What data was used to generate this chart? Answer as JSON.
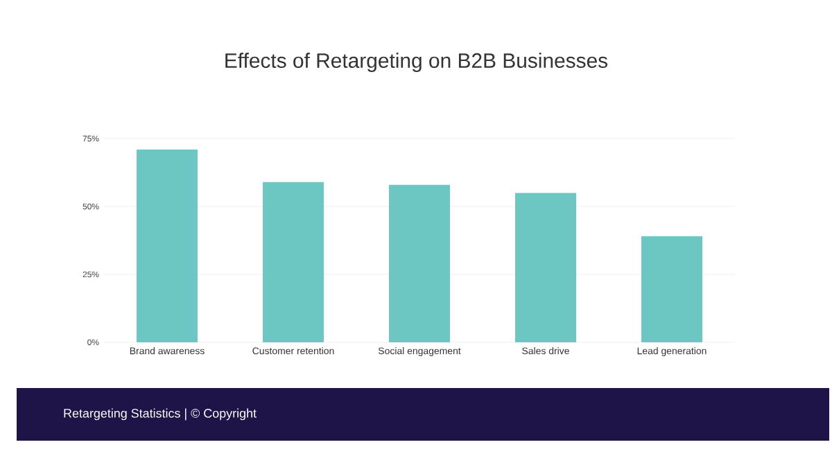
{
  "chart_data": {
    "type": "bar",
    "title": "Effects of Retargeting on B2B Businesses",
    "categories": [
      "Brand awareness",
      "Customer retention",
      "Social engagement",
      "Sales drive",
      "Lead generation"
    ],
    "values": [
      71,
      59,
      58,
      55,
      39
    ],
    "color": "#6cc7c3",
    "ylim": [
      0,
      75
    ],
    "yticks": [
      {
        "value": 0,
        "label": "0%"
      },
      {
        "value": 25,
        "label": "25%"
      },
      {
        "value": 50,
        "label": "50%"
      },
      {
        "value": 75,
        "label": "75%"
      }
    ],
    "grid": "y",
    "annotations": [
      "Retargeting Statistics | © Copyright"
    ]
  }
}
